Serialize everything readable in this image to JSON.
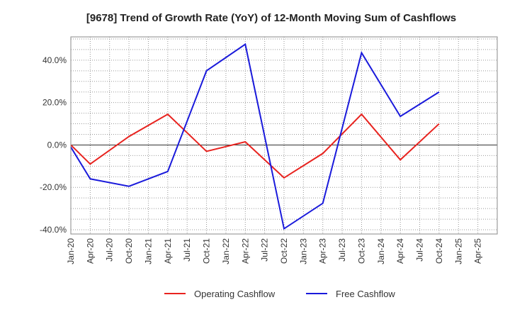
{
  "chart_data": {
    "type": "line",
    "title": "[9678]  Trend of Growth Rate (YoY) of 12-Month Moving Sum of Cashflows",
    "xlabel": "",
    "ylabel": "",
    "categories": [
      "Jan-20",
      "Apr-20",
      "Jul-20",
      "Oct-20",
      "Jan-21",
      "Apr-21",
      "Jul-21",
      "Oct-21",
      "Jan-22",
      "Apr-22",
      "Jul-22",
      "Oct-22",
      "Jan-23",
      "Apr-23",
      "Jul-23",
      "Oct-23",
      "Jan-24",
      "Apr-24",
      "Jul-24",
      "Oct-24",
      "Jan-25",
      "Apr-25"
    ],
    "ylim": [
      -42,
      51
    ],
    "yticks": [
      40,
      20,
      0,
      -20,
      -40
    ],
    "ytick_labels": [
      "40.0%",
      "20.0%",
      "0.0%",
      "-20.0%",
      "-40.0%"
    ],
    "grid": true,
    "legend_position": "bottom-center",
    "series": [
      {
        "name": "Operating Cashflow",
        "color": "#e8231f",
        "values": [
          0.0,
          -9.0,
          null,
          4.0,
          null,
          14.5,
          null,
          -3.0,
          null,
          1.5,
          null,
          -15.5,
          null,
          -4.0,
          null,
          14.5,
          null,
          -7.0,
          null,
          10.0,
          null,
          null
        ]
      },
      {
        "name": "Free Cashflow",
        "color": "#1a1adb",
        "values": [
          -1.0,
          -16.0,
          null,
          -19.5,
          null,
          -12.5,
          null,
          35.0,
          null,
          47.5,
          null,
          -39.5,
          null,
          -27.5,
          null,
          43.5,
          null,
          13.5,
          null,
          25.0,
          null,
          null
        ]
      }
    ]
  }
}
